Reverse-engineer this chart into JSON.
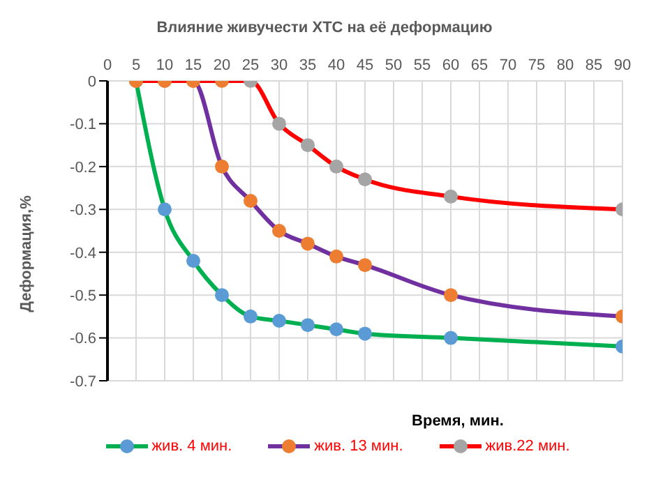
{
  "chart_data": {
    "type": "line",
    "title": "Влияние живучести ХТС на её деформацию",
    "xlabel": "Время, мин.",
    "ylabel": "Деформация,%",
    "xlim": [
      0,
      90
    ],
    "xticks": [
      0,
      5,
      10,
      15,
      20,
      25,
      30,
      35,
      40,
      45,
      50,
      55,
      60,
      65,
      70,
      75,
      80,
      85,
      90
    ],
    "ylim": [
      -0.7,
      0
    ],
    "yticks": [
      0,
      -0.1,
      -0.2,
      -0.3,
      -0.4,
      -0.5,
      -0.6,
      -0.7
    ],
    "grid": true,
    "legend": "bottom",
    "marker": "circle",
    "line_style": "solid",
    "series": [
      {
        "name": "жив. 4 мин.",
        "color": "#00b050",
        "colors": [
          "#5b9bd5",
          "#5b9bd5",
          "#5b9bd5",
          "#5b9bd5",
          "#5b9bd5",
          "#5b9bd5",
          "#5b9bd5",
          "#5b9bd5",
          "#5b9bd5",
          "#5b9bd5",
          "#5b9bd5"
        ],
        "x": [
          5,
          10,
          15,
          20,
          25,
          30,
          35,
          40,
          45,
          60,
          90
        ],
        "values": [
          0,
          -0.3,
          -0.42,
          -0.5,
          -0.55,
          -0.56,
          -0.57,
          -0.58,
          -0.59,
          -0.6,
          -0.62
        ]
      },
      {
        "name": "жив. 13 мин.",
        "color": "#7030a0",
        "colors": [
          "#ed7d31",
          "#ed7d31",
          "#ed7d31",
          "#ed7d31",
          "#ed7d31",
          "#ed7d31",
          "#ed7d31",
          "#ed7d31",
          "#ed7d31",
          "#ed7d31",
          "#ed7d31"
        ],
        "x": [
          5,
          10,
          15,
          20,
          25,
          30,
          35,
          40,
          45,
          60,
          90
        ],
        "values": [
          0,
          0,
          0,
          -0.2,
          -0.28,
          -0.35,
          -0.38,
          -0.41,
          -0.43,
          -0.5,
          -0.55
        ]
      },
      {
        "name": "жив.22 мин.",
        "color": "#ff0000",
        "colors": [
          "#ed7d31",
          "#ed7d31",
          "#ed7d31",
          "#ed7d31",
          "#a5a5a5",
          "#a5a5a5",
          "#a5a5a5",
          "#a5a5a5",
          "#a5a5a5",
          "#a5a5a5",
          "#a5a5a5"
        ],
        "x": [
          5,
          10,
          15,
          20,
          25,
          30,
          35,
          40,
          45,
          60,
          90
        ],
        "values": [
          0,
          0,
          0,
          0,
          0,
          -0.1,
          -0.15,
          -0.2,
          -0.23,
          -0.27,
          -0.3
        ]
      }
    ]
  }
}
